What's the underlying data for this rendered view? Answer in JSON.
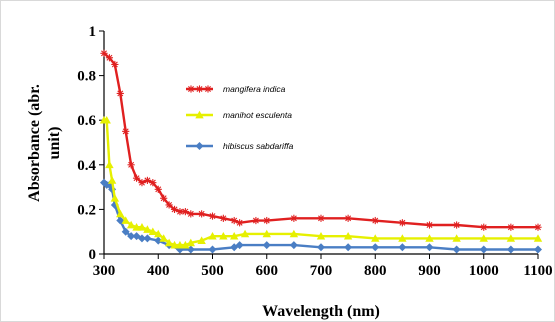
{
  "chart_data": {
    "type": "line",
    "xlabel": "Wavelength (nm)",
    "ylabel_line1": "Absorbance (abr.",
    "ylabel_line2": "unit)",
    "xlim": [
      300,
      1100
    ],
    "ylim": [
      0,
      1
    ],
    "x_ticks": [
      300,
      400,
      500,
      600,
      700,
      800,
      900,
      1000,
      1100
    ],
    "y_ticks": [
      0,
      0.2,
      0.4,
      0.6,
      0.8,
      1
    ],
    "y_tick_labels": [
      "0",
      "0.2",
      "0.4",
      "0.6",
      "0.8",
      "1"
    ],
    "grid": false,
    "legend_position": "top-center",
    "series": [
      {
        "name": "mangifera indica",
        "color": "#e02020",
        "marker": "star",
        "x": [
          300,
          310,
          320,
          330,
          340,
          350,
          360,
          370,
          380,
          390,
          400,
          410,
          420,
          430,
          440,
          450,
          460,
          480,
          500,
          520,
          540,
          550,
          580,
          600,
          650,
          700,
          750,
          800,
          850,
          900,
          950,
          1000,
          1050,
          1100
        ],
        "y": [
          0.9,
          0.88,
          0.85,
          0.72,
          0.55,
          0.4,
          0.34,
          0.32,
          0.33,
          0.32,
          0.29,
          0.25,
          0.22,
          0.2,
          0.19,
          0.19,
          0.18,
          0.18,
          0.17,
          0.16,
          0.15,
          0.14,
          0.15,
          0.15,
          0.16,
          0.16,
          0.16,
          0.15,
          0.14,
          0.13,
          0.13,
          0.12,
          0.12,
          0.12
        ]
      },
      {
        "name": "manihot esculenta",
        "color": "#e6f000",
        "marker": "triangle",
        "x": [
          300,
          305,
          310,
          315,
          320,
          330,
          340,
          350,
          360,
          370,
          380,
          390,
          400,
          410,
          420,
          430,
          440,
          450,
          460,
          480,
          500,
          520,
          540,
          560,
          600,
          650,
          700,
          750,
          800,
          850,
          900,
          950,
          1000,
          1050,
          1100
        ],
        "y": [
          0.6,
          0.6,
          0.4,
          0.33,
          0.25,
          0.18,
          0.15,
          0.13,
          0.12,
          0.12,
          0.11,
          0.1,
          0.09,
          0.07,
          0.05,
          0.04,
          0.04,
          0.04,
          0.05,
          0.06,
          0.08,
          0.08,
          0.08,
          0.09,
          0.09,
          0.09,
          0.08,
          0.08,
          0.07,
          0.07,
          0.07,
          0.07,
          0.07,
          0.07,
          0.07
        ]
      },
      {
        "name": "hibiscus sabdariffa",
        "color": "#4a7ec4",
        "marker": "diamond",
        "x": [
          300,
          305,
          310,
          315,
          320,
          330,
          340,
          350,
          360,
          370,
          380,
          400,
          420,
          440,
          460,
          500,
          540,
          550,
          600,
          650,
          700,
          750,
          800,
          850,
          900,
          950,
          1000,
          1050,
          1100
        ],
        "y": [
          0.32,
          0.31,
          0.31,
          0.29,
          0.22,
          0.15,
          0.1,
          0.08,
          0.08,
          0.07,
          0.07,
          0.06,
          0.04,
          0.02,
          0.02,
          0.02,
          0.03,
          0.04,
          0.04,
          0.04,
          0.03,
          0.03,
          0.03,
          0.03,
          0.03,
          0.02,
          0.02,
          0.02,
          0.02
        ]
      }
    ]
  }
}
